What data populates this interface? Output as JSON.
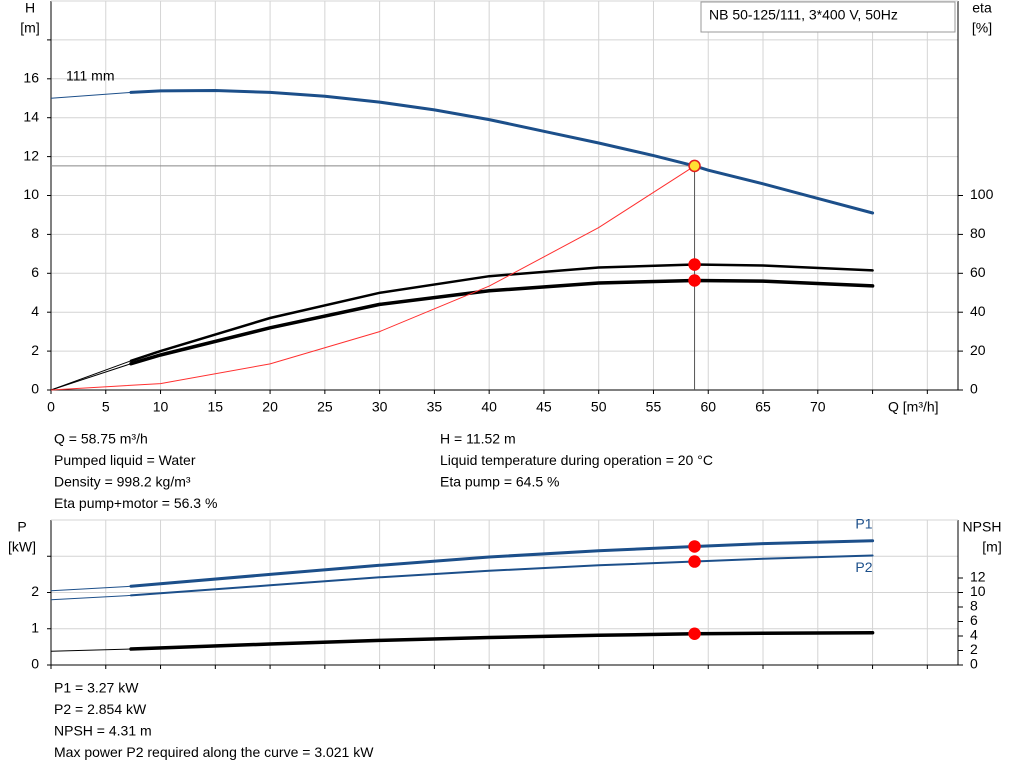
{
  "title_box": "NB 50-125/111, 3*400 V, 50Hz",
  "chart_data": [
    {
      "type": "line",
      "y_label": [
        "H",
        "[m]"
      ],
      "y2_label": [
        "eta",
        "[%]"
      ],
      "x_label": "Q [m³/h]",
      "xlim": [
        0,
        82.8
      ],
      "ylim": [
        0,
        20
      ],
      "y2lim": [
        0,
        200
      ],
      "xticks": [
        0,
        5,
        10,
        15,
        20,
        25,
        30,
        35,
        40,
        45,
        50,
        55,
        60,
        65,
        70,
        {
          "value": 75,
          "label": null
        },
        {
          "value": 80,
          "label": null
        }
      ],
      "yticks": [
        0,
        2,
        4,
        6,
        8,
        10,
        12,
        14,
        16,
        {
          "value": 18,
          "label": null
        }
      ],
      "y2ticks": [
        0,
        20,
        40,
        60,
        80,
        100
      ],
      "grid": true,
      "series": [
        {
          "name": "111 mm",
          "color": "#1c4f8a",
          "width": 3,
          "x": [
            0,
            7.3,
            10,
            15,
            20,
            25,
            30,
            35,
            40,
            45,
            50,
            55,
            58.75,
            60,
            65,
            70,
            75
          ],
          "values": [
            15.0,
            15.3,
            15.38,
            15.4,
            15.3,
            15.1,
            14.8,
            14.4,
            13.9,
            13.3,
            12.7,
            12.05,
            11.52,
            11.3,
            10.6,
            9.85,
            9.1
          ]
        },
        {
          "color": "#000000",
          "width": 2.5,
          "axis": "y2",
          "x": [
            0,
            7.3,
            10,
            20,
            30,
            40,
            50,
            58.75,
            65,
            75
          ],
          "values": [
            0,
            15,
            20,
            37,
            50,
            58.5,
            63,
            64.5,
            64,
            61.5
          ]
        },
        {
          "color": "#000000",
          "width": 3.5,
          "axis": "y2",
          "x": [
            0,
            7.3,
            10,
            20,
            30,
            40,
            50,
            58.75,
            65,
            75
          ],
          "values": [
            0,
            13.5,
            18,
            32,
            44,
            51,
            55,
            56.3,
            56,
            53.5
          ]
        },
        {
          "color": "#ff3030",
          "width": 1,
          "x": [
            0,
            10,
            20,
            30,
            40,
            50,
            58.75
          ],
          "values": [
            0,
            0.33,
            1.34,
            3.0,
            5.34,
            8.35,
            11.52
          ]
        }
      ],
      "markers": [
        {
          "x": 58.75,
          "y": 11.52,
          "color": "#ffe033",
          "edge": "#e02020"
        },
        {
          "x": 58.75,
          "y": 64.5,
          "axis": "y2",
          "color": "#ff0000",
          "edge": "#ff0000"
        },
        {
          "x": 58.75,
          "y": 56.3,
          "axis": "y2",
          "color": "#ff0000",
          "edge": "#ff0000"
        }
      ]
    },
    {
      "type": "line",
      "y_label": [
        "P",
        "[kW]"
      ],
      "y2_label": [
        "NPSH",
        "[m]"
      ],
      "xlim": [
        0,
        82.8
      ],
      "ylim": [
        0,
        4
      ],
      "y2lim": [
        0,
        20
      ],
      "xticks": [
        0,
        5,
        10,
        15,
        20,
        25,
        30,
        35,
        40,
        45,
        50,
        55,
        60,
        65,
        70,
        75,
        80
      ],
      "xtick_labels": false,
      "yticks": [
        0,
        1,
        2,
        {
          "value": 3,
          "label": null
        }
      ],
      "y2ticks": [
        0,
        2,
        4,
        6,
        8,
        10,
        12
      ],
      "grid": true,
      "series": [
        {
          "name": "P1",
          "color": "#1c4f8a",
          "width": 3,
          "x": [
            0,
            7.3,
            20,
            30,
            40,
            50,
            58.75,
            65,
            75
          ],
          "values": [
            2.05,
            2.17,
            2.5,
            2.75,
            2.98,
            3.15,
            3.27,
            3.35,
            3.43
          ]
        },
        {
          "name": "P2",
          "color": "#1c4f8a",
          "width": 2,
          "x": [
            0,
            7.3,
            20,
            30,
            40,
            50,
            58.75,
            65,
            75
          ],
          "values": [
            1.8,
            1.92,
            2.2,
            2.42,
            2.6,
            2.75,
            2.854,
            2.93,
            3.021
          ]
        },
        {
          "color": "#000000",
          "width": 3.5,
          "axis": "y2",
          "x": [
            0,
            7.3,
            20,
            30,
            40,
            50,
            58.75,
            65,
            75
          ],
          "values": [
            1.9,
            2.2,
            2.9,
            3.4,
            3.8,
            4.1,
            4.31,
            4.38,
            4.45
          ]
        }
      ],
      "markers": [
        {
          "x": 58.75,
          "y": 3.27,
          "color": "#ff0000",
          "edge": "#ff0000"
        },
        {
          "x": 58.75,
          "y": 2.854,
          "color": "#ff0000",
          "edge": "#ff0000"
        },
        {
          "x": 58.75,
          "y": 4.31,
          "axis": "y2",
          "color": "#ff0000",
          "edge": "#ff0000"
        }
      ]
    }
  ],
  "info_top": {
    "left": [
      "Q = 58.75 m³/h",
      "Pumped liquid = Water",
      "Density = 998.2 kg/m³",
      "Eta pump+motor = 56.3 %"
    ],
    "right": [
      "H = 11.52 m",
      "Liquid temperature during operation = 20 °C",
      "Eta pump = 64.5 %"
    ]
  },
  "info_bottom": [
    "P1 = 3.27 kW",
    "P2 = 2.854 kW",
    "NPSH = 4.31 m",
    "Max power P2 required along the curve = 3.021 kW"
  ]
}
